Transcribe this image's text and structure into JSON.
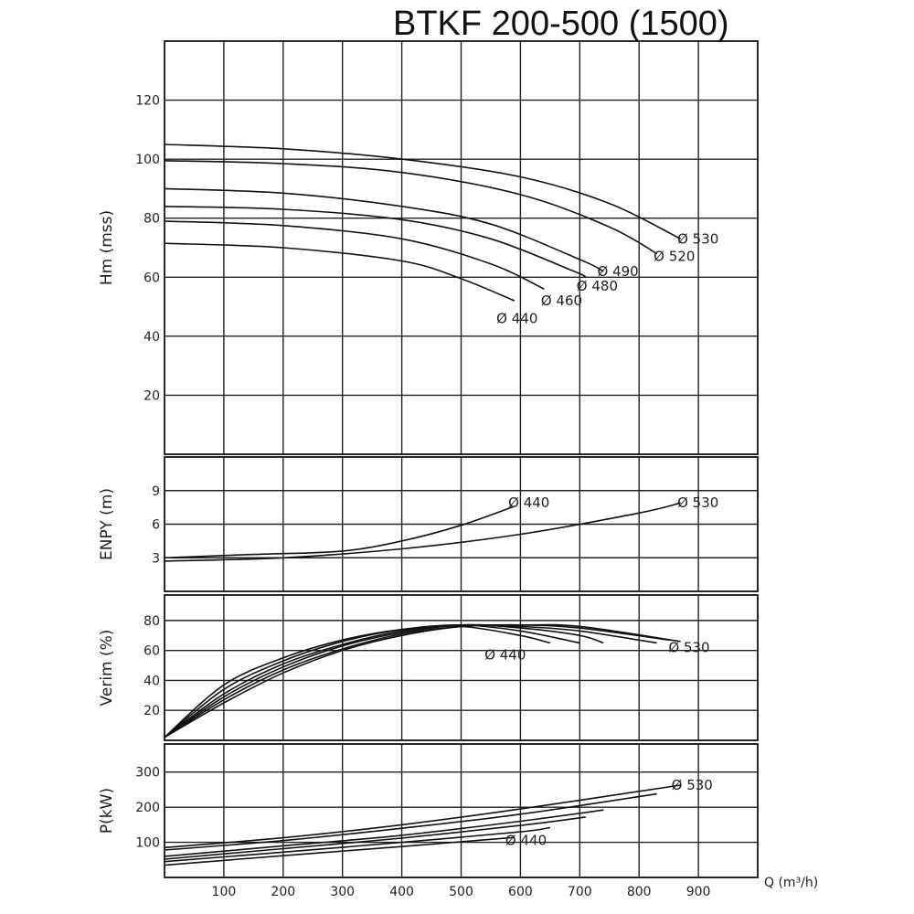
{
  "chart_data": {
    "title": "BTKF 200-500 (1500)",
    "xlabel": "Q (m³/h)",
    "xlim": [
      0,
      1000
    ],
    "xticks": [
      100,
      200,
      300,
      400,
      500,
      600,
      700,
      800,
      900
    ],
    "grid": true,
    "panels": [
      {
        "id": "hm",
        "type": "line",
        "ylabel": "Hm (mss)",
        "ylim": [
          0,
          140
        ],
        "yticks": [
          20,
          40,
          60,
          80,
          100,
          120
        ],
        "series": [
          {
            "name": "Ø 530",
            "x": [
              0,
              200,
              400,
              600,
              750,
              870
            ],
            "y": [
              105,
              103.5,
              100,
              94,
              85,
              73
            ]
          },
          {
            "name": "Ø 520",
            "x": [
              0,
              200,
              400,
              600,
              750,
              830
            ],
            "y": [
              99.5,
              98.5,
              95.5,
              88,
              77,
              68
            ]
          },
          {
            "name": "Ø 490",
            "x": [
              0,
              200,
              400,
              550,
              700,
              740
            ],
            "y": [
              90,
              88.5,
              84,
              78,
              66,
              62
            ]
          },
          {
            "name": "Ø 480",
            "x": [
              0,
              200,
              400,
              550,
              690,
              710
            ],
            "y": [
              84,
              83,
              79.5,
              73,
              62,
              60
            ]
          },
          {
            "name": "Ø 460",
            "x": [
              0,
              200,
              400,
              550,
              640
            ],
            "y": [
              79,
              77.5,
              73,
              64.5,
              56
            ]
          },
          {
            "name": "Ø 440",
            "x": [
              0,
              200,
              400,
              500,
              590
            ],
            "y": [
              71.5,
              70,
              65.5,
              59.5,
              52
            ]
          }
        ],
        "labels": [
          {
            "text": "Ø 530",
            "x": 880,
            "y": 73
          },
          {
            "text": "Ø 520",
            "x": 840,
            "y": 67
          },
          {
            "text": "Ø 490",
            "x": 745,
            "y": 62
          },
          {
            "text": "Ø 480",
            "x": 710,
            "y": 57
          },
          {
            "text": "Ø 460",
            "x": 650,
            "y": 52
          },
          {
            "text": "Ø 440",
            "x": 575,
            "y": 46
          }
        ]
      },
      {
        "id": "npsh",
        "type": "line",
        "ylabel": "ENPY (m)",
        "ylim": [
          0,
          12
        ],
        "yticks": [
          3,
          6,
          9
        ],
        "series": [
          {
            "name": "Ø 440",
            "x": [
              0,
              150,
              300,
              400,
              500,
              590
            ],
            "y": [
              3,
              3.3,
              3.6,
              4.5,
              5.9,
              7.6
            ]
          },
          {
            "name": "Ø 530",
            "x": [
              0,
              200,
              400,
              600,
              800,
              870
            ],
            "y": [
              2.7,
              3.0,
              3.8,
              5.1,
              7.0,
              7.9
            ]
          }
        ],
        "labels": [
          {
            "text": "Ø 440",
            "x": 595,
            "y": 7.9
          },
          {
            "text": "Ø 530",
            "x": 880,
            "y": 7.9
          }
        ]
      },
      {
        "id": "eff",
        "type": "line",
        "ylabel": "Verim (%)",
        "ylim": [
          0,
          97
        ],
        "yticks": [
          20,
          40,
          60,
          80
        ],
        "series": [
          {
            "name": "Ø 440",
            "x": [
              0,
              100,
              200,
              300,
              400,
              500,
              600,
              650
            ],
            "y": [
              2,
              37,
              55,
              67,
              74,
              76,
              70,
              65
            ]
          },
          {
            "name": "Ø 460",
            "x": [
              0,
              100,
              200,
              300,
              400,
              500,
              600,
              700
            ],
            "y": [
              2,
              34,
              53,
              66,
              74,
              77,
              73,
              65
            ]
          },
          {
            "name": "Ø 480",
            "x": [
              0,
              100,
              200,
              300,
              400,
              500,
              600,
              700,
              740
            ],
            "y": [
              2,
              31,
              51,
              64,
              73,
              77,
              75,
              70,
              65
            ]
          },
          {
            "name": "Ø 490",
            "x": [
              0,
              100,
              200,
              300,
              400,
              500,
              600,
              700,
              830
            ],
            "y": [
              2,
              29,
              49,
              63,
              72,
              77,
              76,
              73,
              65
            ]
          },
          {
            "name": "Ø 520",
            "x": [
              0,
              100,
              200,
              300,
              400,
              500,
              600,
              700,
              850
            ],
            "y": [
              2,
              27,
              47,
              61,
              71,
              76,
              77,
              75,
              67
            ]
          },
          {
            "name": "Ø 530",
            "x": [
              0,
              100,
              200,
              300,
              400,
              500,
              600,
              700,
              870
            ],
            "y": [
              2,
              25,
              45,
              60,
              70,
              76,
              77,
              76,
              66
            ]
          }
        ],
        "labels": [
          {
            "text": "Ø 440",
            "x": 555,
            "y": 57
          },
          {
            "text": "Ø 530",
            "x": 865,
            "y": 62
          }
        ]
      },
      {
        "id": "power",
        "type": "line",
        "ylabel": "P(kW)",
        "ylim": [
          0,
          380
        ],
        "yticks": [
          100,
          200,
          300
        ],
        "series": [
          {
            "name": "Ø 530",
            "x": [
              0,
              200,
              400,
              600,
              870
            ],
            "y": [
              85,
              113,
              150,
              195,
              263
            ]
          },
          {
            "name": "Ø 520",
            "x": [
              0,
              200,
              400,
              600,
              830
            ],
            "y": [
              78,
              105,
              140,
              180,
              238
            ]
          },
          {
            "name": "Ø 490",
            "x": [
              0,
              200,
              400,
              600,
              740
            ],
            "y": [
              60,
              90,
              120,
              160,
              192
            ]
          },
          {
            "name": "Ø 480",
            "x": [
              0,
              200,
              400,
              600,
              710
            ],
            "y": [
              52,
              82,
              112,
              148,
              172
            ]
          },
          {
            "name": "Ø 460",
            "x": [
              0,
              200,
              400,
              600,
              650
            ],
            "y": [
              45,
              72,
              100,
              130,
              142
            ]
          },
          {
            "name": "Ø 440",
            "x": [
              0,
              200,
              400,
              590
            ],
            "y": [
              35,
              62,
              88,
              114
            ]
          }
        ],
        "labels": [
          {
            "text": "Ø 530",
            "x": 870,
            "y": 263
          },
          {
            "text": "Ø 440",
            "x": 590,
            "y": 105
          }
        ]
      }
    ]
  }
}
